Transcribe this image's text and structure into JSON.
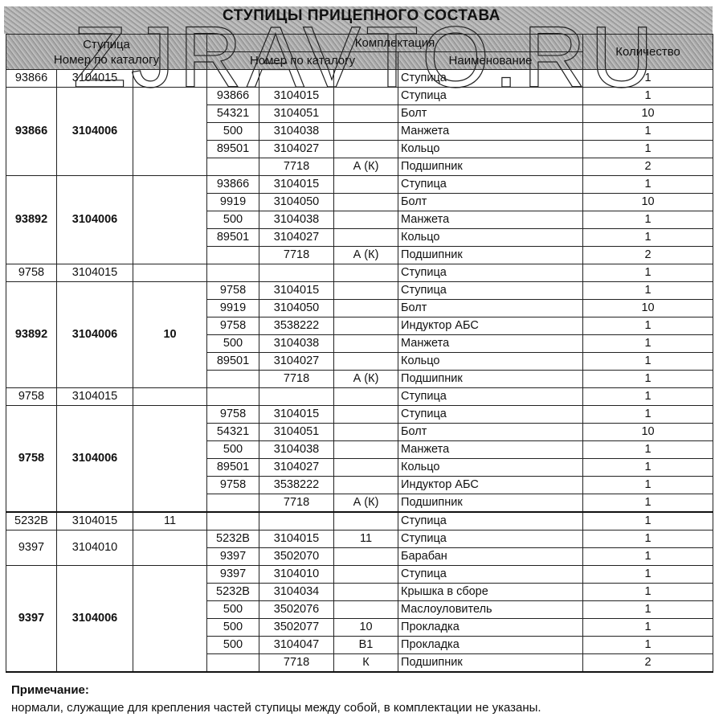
{
  "title": "СТУПИЦЫ ПРИЦЕПНОГО СОСТАВА",
  "watermark": "ZJRAVTO.RU",
  "header": {
    "hub": "Ступица",
    "hub_catalog": "Номер по каталогу",
    "kit": "Комплектация",
    "kit_catalog": "Номер по каталогу",
    "name": "Наименование",
    "qty": "Количество"
  },
  "groups": [
    {
      "a": "93866",
      "b": "3104015",
      "c": "",
      "bold": false,
      "items": [
        {
          "d": "",
          "e": "",
          "f": "",
          "name": "Ступица",
          "qty": "1"
        }
      ]
    },
    {
      "a": "93866",
      "b": "3104006",
      "c": "",
      "bold": true,
      "items": [
        {
          "d": "93866",
          "e": "3104015",
          "f": "",
          "name": "Ступица",
          "qty": "1"
        },
        {
          "d": "54321",
          "e": "3104051",
          "f": "",
          "name": "Болт",
          "qty": "10"
        },
        {
          "d": "500",
          "e": "3104038",
          "f": "",
          "name": "Манжета",
          "qty": "1"
        },
        {
          "d": "89501",
          "e": "3104027",
          "f": "",
          "name": "Кольцо",
          "qty": "1"
        },
        {
          "d": "",
          "e": "7718",
          "f": "А (К)",
          "name": "Подшипник",
          "qty": "2"
        }
      ]
    },
    {
      "a": "93892",
      "b": "3104006",
      "c": "",
      "bold": true,
      "items": [
        {
          "d": "93866",
          "e": "3104015",
          "f": "",
          "name": "Ступица",
          "qty": "1"
        },
        {
          "d": "9919",
          "e": "3104050",
          "f": "",
          "name": "Болт",
          "qty": "10"
        },
        {
          "d": "500",
          "e": "3104038",
          "f": "",
          "name": "Манжета",
          "qty": "1"
        },
        {
          "d": "89501",
          "e": "3104027",
          "f": "",
          "name": "Кольцо",
          "qty": "1"
        },
        {
          "d": "",
          "e": "7718",
          "f": "А (К)",
          "name": "Подшипник",
          "qty": "2"
        }
      ]
    },
    {
      "a": "9758",
      "b": "3104015",
      "c": "",
      "bold": false,
      "items": [
        {
          "d": "",
          "e": "",
          "f": "",
          "name": "Ступица",
          "qty": "1"
        }
      ]
    },
    {
      "a": "93892",
      "b": "3104006",
      "c": "10",
      "bold": true,
      "items": [
        {
          "d": "9758",
          "e": "3104015",
          "f": "",
          "name": "Ступица",
          "qty": "1"
        },
        {
          "d": "9919",
          "e": "3104050",
          "f": "",
          "name": "Болт",
          "qty": "10"
        },
        {
          "d": "9758",
          "e": "3538222",
          "f": "",
          "name": "Индуктор АБС",
          "qty": "1"
        },
        {
          "d": "500",
          "e": "3104038",
          "f": "",
          "name": "Манжета",
          "qty": "1"
        },
        {
          "d": "89501",
          "e": "3104027",
          "f": "",
          "name": "Кольцо",
          "qty": "1"
        },
        {
          "d": "",
          "e": "7718",
          "f": "А (К)",
          "name": "Подшипник",
          "qty": "1"
        }
      ]
    },
    {
      "a": "9758",
      "b": "3104015",
      "c": "",
      "bold": false,
      "items": [
        {
          "d": "",
          "e": "",
          "f": "",
          "name": "Ступица",
          "qty": "1"
        }
      ]
    },
    {
      "a": "9758",
      "b": "3104006",
      "c": "",
      "bold": true,
      "items": [
        {
          "d": "9758",
          "e": "3104015",
          "f": "",
          "name": "Ступица",
          "qty": "1"
        },
        {
          "d": "54321",
          "e": "3104051",
          "f": "",
          "name": "Болт",
          "qty": "10"
        },
        {
          "d": "500",
          "e": "3104038",
          "f": "",
          "name": "Манжета",
          "qty": "1"
        },
        {
          "d": "89501",
          "e": "3104027",
          "f": "",
          "name": "Кольцо",
          "qty": "1"
        },
        {
          "d": "9758",
          "e": "3538222",
          "f": "",
          "name": "Индуктор АБС",
          "qty": "1"
        },
        {
          "d": "",
          "e": "7718",
          "f": "А (К)",
          "name": "Подшипник",
          "qty": "1"
        }
      ]
    },
    {
      "a": "5232B",
      "b": "3104015",
      "c": "11",
      "bold": false,
      "thick": true,
      "items": [
        {
          "d": "",
          "e": "",
          "f": "",
          "name": "Ступица",
          "qty": "1"
        }
      ]
    },
    {
      "a": "9397",
      "b": "3104010",
      "c": "",
      "bold": false,
      "items": [
        {
          "d": "5232B",
          "e": "3104015",
          "f": "11",
          "name": "Ступица",
          "qty": "1"
        },
        {
          "d": "9397",
          "e": "3502070",
          "f": "",
          "name": "Барабан",
          "qty": "1"
        }
      ]
    },
    {
      "a": "9397",
      "b": "3104006",
      "c": "",
      "bold": true,
      "items": [
        {
          "d": "9397",
          "e": "3104010",
          "f": "",
          "name": "Ступица",
          "qty": "1"
        },
        {
          "d": "5232B",
          "e": "3104034",
          "f": "",
          "name": "Крышка в сборе",
          "qty": "1"
        },
        {
          "d": "500",
          "e": "3502076",
          "f": "",
          "name": "Маслоуловитель",
          "qty": "1"
        },
        {
          "d": "500",
          "e": "3502077",
          "f": "10",
          "name": "Прокладка",
          "qty": "1"
        },
        {
          "d": "500",
          "e": "3104047",
          "f": "В1",
          "name": "Прокладка",
          "qty": "1"
        },
        {
          "d": "",
          "e": "7718",
          "f": "К",
          "name": "Подшипник",
          "qty": "2"
        }
      ]
    }
  ],
  "note": {
    "heading": "Примечание:",
    "text": "нормали, служащие для крепления частей ступицы между собой, в комплектации не указаны."
  }
}
